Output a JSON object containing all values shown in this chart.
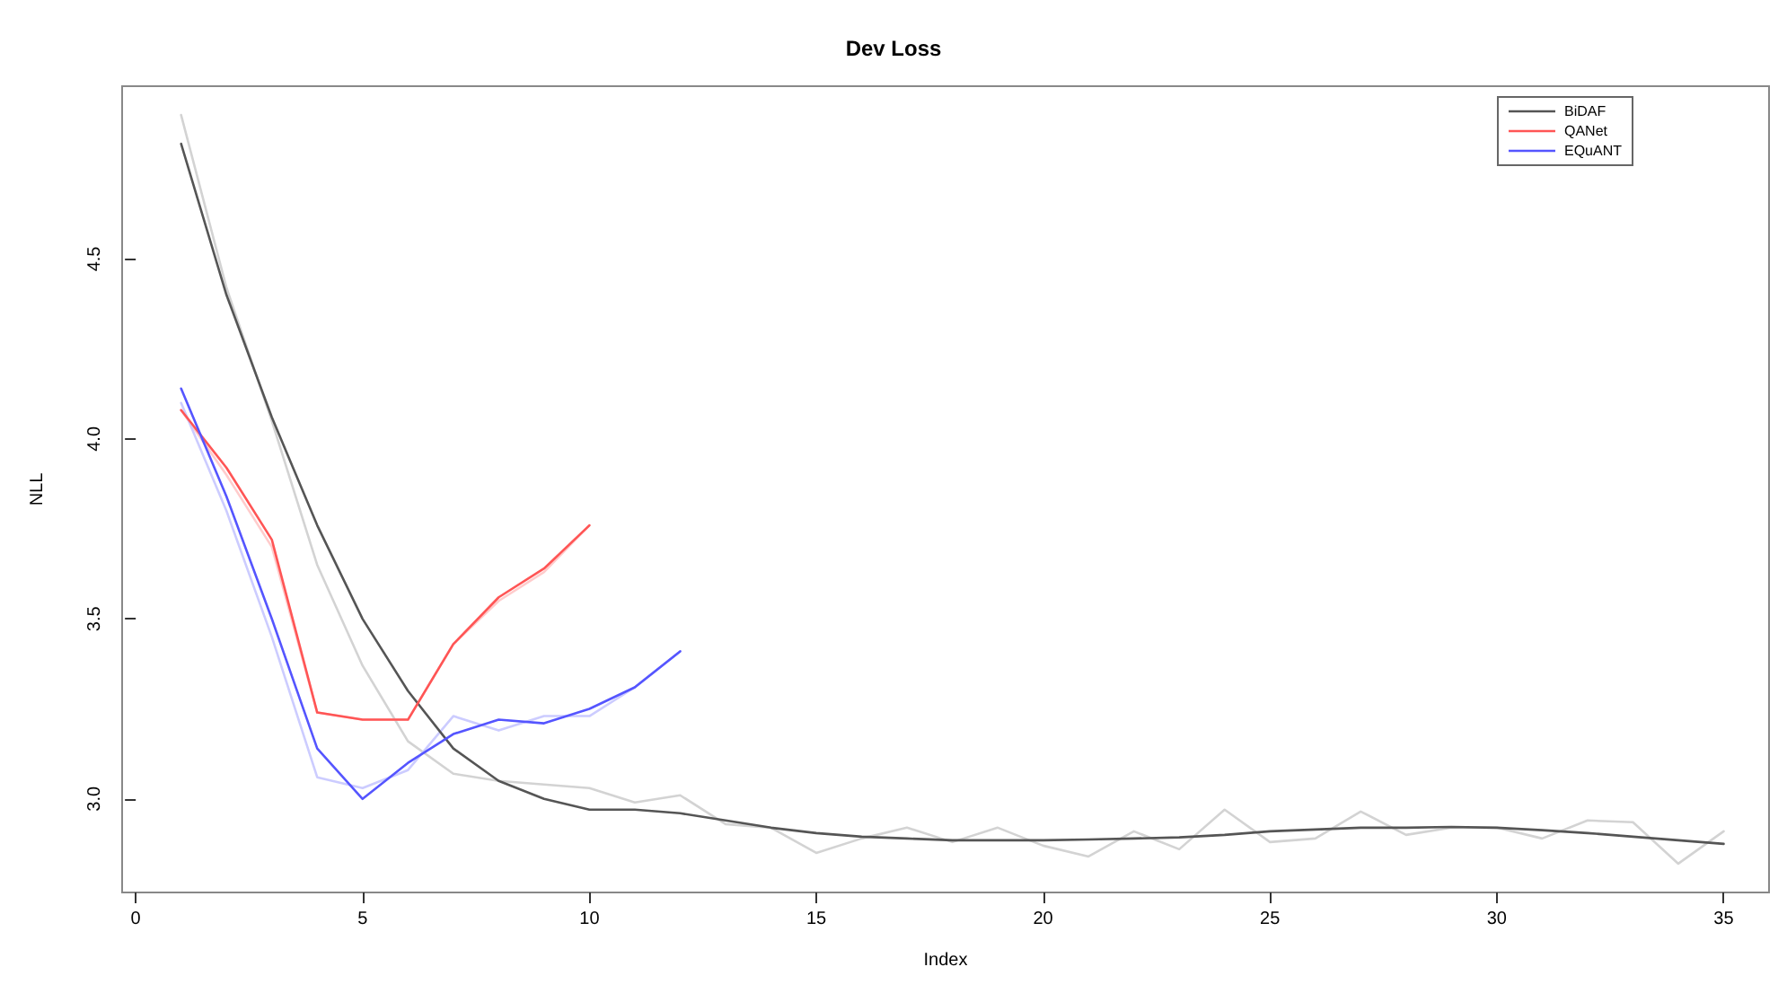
{
  "chart_data": {
    "type": "line",
    "title": "Dev Loss",
    "xlabel": "Index",
    "ylabel": "NLL",
    "xlim": [
      -0.3,
      36
    ],
    "xticks": [
      0,
      5,
      10,
      15,
      20,
      25,
      30,
      35
    ],
    "ylim": [
      2.74,
      4.98
    ],
    "yticks": [
      {
        "value": 3.0,
        "label": "3.0"
      },
      {
        "value": 3.5,
        "label": "3.5"
      },
      {
        "value": 4.0,
        "label": "4.0"
      },
      {
        "value": 4.5,
        "label": "4.5"
      }
    ],
    "grid": false,
    "legend": "top right",
    "marker": "none",
    "line_style": "solid",
    "x": [
      1,
      2,
      3,
      4,
      5,
      6,
      7,
      8,
      9,
      10,
      11,
      12,
      13,
      14,
      15,
      16,
      17,
      18,
      19,
      20,
      21,
      22,
      23,
      24,
      25,
      26,
      27,
      28,
      29,
      30,
      31,
      32,
      33,
      34,
      35
    ],
    "series": [
      {
        "color": "#d3d3d3",
        "values": [
          4.9,
          4.42,
          4.05,
          3.65,
          3.37,
          3.16,
          3.07,
          3.05,
          3.04,
          3.03,
          2.99,
          3.01,
          2.93,
          2.92,
          2.85,
          2.89,
          2.92,
          2.88,
          2.92,
          2.87,
          2.84,
          2.91,
          2.86,
          2.97,
          2.88,
          2.89,
          2.965,
          2.9,
          2.92,
          2.92,
          2.89,
          2.94,
          2.935,
          2.82,
          2.91
        ]
      },
      {
        "color": "#ffcccc",
        "x": [
          1,
          2,
          3,
          4,
          5,
          6,
          7,
          8,
          9,
          10
        ],
        "values": [
          4.08,
          3.9,
          3.7,
          3.24,
          3.22,
          3.22,
          3.43,
          3.55,
          3.63,
          3.76
        ]
      },
      {
        "color": "#ccccff",
        "x": [
          1,
          2,
          3,
          4,
          5,
          6,
          7,
          8,
          9,
          10,
          11,
          12
        ],
        "values": [
          4.1,
          3.8,
          3.45,
          3.06,
          3.03,
          3.08,
          3.23,
          3.19,
          3.23,
          3.23,
          3.31,
          3.41
        ]
      },
      {
        "name": "BiDAF",
        "color": "#555555",
        "values": [
          4.82,
          4.4,
          4.06,
          3.76,
          3.5,
          3.3,
          3.14,
          3.05,
          3.0,
          2.97,
          2.97,
          2.96,
          2.94,
          2.92,
          2.905,
          2.895,
          2.89,
          2.885,
          2.885,
          2.885,
          2.887,
          2.89,
          2.893,
          2.9,
          2.91,
          2.915,
          2.92,
          2.92,
          2.922,
          2.92,
          2.913,
          2.905,
          2.895,
          2.885,
          2.875
        ]
      },
      {
        "name": "QANet",
        "color": "#ff5555",
        "x": [
          1,
          2,
          3,
          4,
          5,
          6,
          7,
          8,
          9,
          10
        ],
        "values": [
          4.08,
          3.92,
          3.72,
          3.24,
          3.22,
          3.22,
          3.43,
          3.56,
          3.64,
          3.76
        ]
      },
      {
        "name": "EQuANT",
        "color": "#5555ff",
        "x": [
          1,
          2,
          3,
          4,
          5,
          6,
          7,
          8,
          9,
          10,
          11,
          12
        ],
        "values": [
          4.14,
          3.84,
          3.5,
          3.14,
          3.0,
          3.1,
          3.18,
          3.22,
          3.21,
          3.25,
          3.31,
          3.41
        ]
      }
    ]
  }
}
